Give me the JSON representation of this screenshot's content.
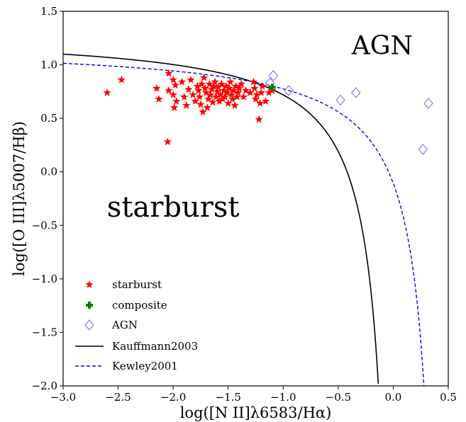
{
  "chart_data": {
    "type": "scatter",
    "xlabel": "log([N II]λ6583/Hα)",
    "ylabel": "log([O III]λ5007/Hβ)",
    "xlim": [
      -3.0,
      0.5
    ],
    "ylim": [
      -2.0,
      1.5
    ],
    "x_ticks": [
      "−3.0",
      "−2.5",
      "−2.0",
      "−1.5",
      "−1.0",
      "−0.5",
      "0.0",
      "0.5"
    ],
    "y_ticks": [
      "−2.0",
      "−1.5",
      "−1.0",
      "−0.5",
      "0.0",
      "0.5",
      "1.0",
      "1.5"
    ],
    "annotations": [
      {
        "text": "AGN",
        "x": -0.1,
        "y": 1.1,
        "size": 36
      },
      {
        "text": "starburst",
        "x": -2.0,
        "y": -0.42,
        "size": 40
      }
    ],
    "legend_position": "lower-left",
    "series": [
      {
        "name": "starburst",
        "kind": "scatter",
        "marker": "star",
        "color": "#ff0000",
        "points": [
          [
            -2.6,
            0.74
          ],
          [
            -2.47,
            0.86
          ],
          [
            -2.15,
            0.78
          ],
          [
            -2.13,
            0.68
          ],
          [
            -2.05,
            0.28
          ],
          [
            -2.04,
            0.92
          ],
          [
            -2.04,
            0.76
          ],
          [
            -2.0,
            0.86
          ],
          [
            -2.0,
            0.72
          ],
          [
            -1.99,
            0.6
          ],
          [
            -1.98,
            0.81
          ],
          [
            -1.97,
            0.66
          ],
          [
            -1.92,
            0.84
          ],
          [
            -1.9,
            0.7
          ],
          [
            -1.88,
            0.62
          ],
          [
            -1.86,
            0.77
          ],
          [
            -1.84,
            0.86
          ],
          [
            -1.82,
            0.72
          ],
          [
            -1.8,
            0.66
          ],
          [
            -1.78,
            0.8
          ],
          [
            -1.77,
            0.76
          ],
          [
            -1.76,
            0.7
          ],
          [
            -1.75,
            0.63
          ],
          [
            -1.74,
            0.82
          ],
          [
            -1.73,
            0.56
          ],
          [
            -1.72,
            0.88
          ],
          [
            -1.71,
            0.78
          ],
          [
            -1.7,
            0.74
          ],
          [
            -1.69,
            0.6
          ],
          [
            -1.68,
            0.68
          ],
          [
            -1.67,
            0.82
          ],
          [
            -1.66,
            0.72
          ],
          [
            -1.65,
            0.77
          ],
          [
            -1.64,
            0.65
          ],
          [
            -1.63,
            0.8
          ],
          [
            -1.62,
            0.84
          ],
          [
            -1.61,
            0.7
          ],
          [
            -1.6,
            0.75
          ],
          [
            -1.59,
            0.79
          ],
          [
            -1.58,
            0.66
          ],
          [
            -1.57,
            0.72
          ],
          [
            -1.56,
            0.82
          ],
          [
            -1.55,
            0.68
          ],
          [
            -1.54,
            0.76
          ],
          [
            -1.53,
            0.7
          ],
          [
            -1.52,
            0.8
          ],
          [
            -1.51,
            0.74
          ],
          [
            -1.5,
            0.64
          ],
          [
            -1.49,
            0.78
          ],
          [
            -1.48,
            0.84
          ],
          [
            -1.47,
            0.72
          ],
          [
            -1.46,
            0.68
          ],
          [
            -1.45,
            0.76
          ],
          [
            -1.44,
            0.62
          ],
          [
            -1.43,
            0.8
          ],
          [
            -1.42,
            0.7
          ],
          [
            -1.41,
            0.74
          ],
          [
            -1.4,
            0.78
          ],
          [
            -1.38,
            0.82
          ],
          [
            -1.36,
            0.7
          ],
          [
            -1.34,
            0.76
          ],
          [
            -1.3,
            0.74
          ],
          [
            -1.27,
            0.84
          ],
          [
            -1.26,
            0.78
          ],
          [
            -1.25,
            0.68
          ],
          [
            -1.24,
            0.72
          ],
          [
            -1.22,
            0.49
          ],
          [
            -1.21,
            0.64
          ],
          [
            -1.2,
            0.74
          ],
          [
            -1.19,
            0.8
          ],
          [
            -1.16,
            0.66
          ],
          [
            -1.13,
            0.74
          ],
          [
            -1.1,
            0.76
          ]
        ]
      },
      {
        "name": "composite",
        "kind": "scatter",
        "marker": "plus",
        "color": "#008000",
        "points": [
          [
            -1.1,
            0.79
          ]
        ]
      },
      {
        "name": "AGN",
        "kind": "scatter",
        "marker": "diamond",
        "color": "#9370db",
        "points": [
          [
            -1.12,
            0.83
          ],
          [
            -1.09,
            0.9
          ],
          [
            -0.95,
            0.76
          ],
          [
            -0.48,
            0.67
          ],
          [
            -0.34,
            0.74
          ],
          [
            0.27,
            0.21
          ],
          [
            0.32,
            0.64
          ]
        ]
      },
      {
        "name": "Kauffmann2003",
        "kind": "curve",
        "style": "solid",
        "color": "#000000",
        "formula": "0.61/(x-0.05)+1.3",
        "x_range": [
          -3.0,
          -0.136
        ]
      },
      {
        "name": "Kewley2001",
        "kind": "curve",
        "style": "dashed",
        "color": "#0000ff",
        "formula": "0.61/(x-0.47)+1.19",
        "x_range": [
          -3.0,
          0.28
        ]
      }
    ]
  }
}
